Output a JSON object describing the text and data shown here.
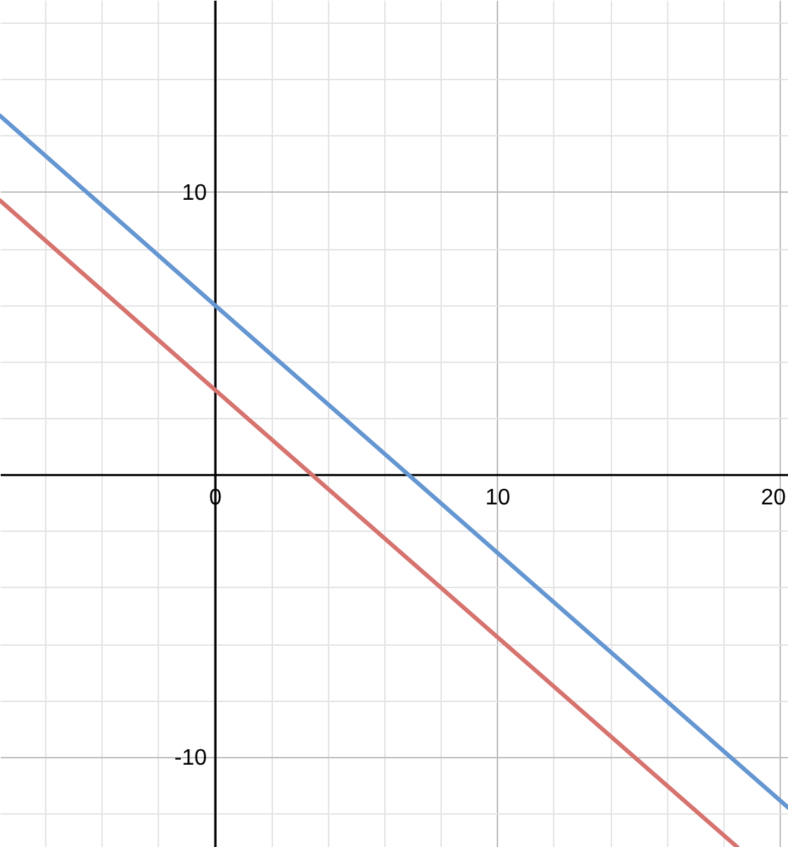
{
  "chart_data": {
    "type": "line",
    "xlim": [
      -7.6,
      20.3
    ],
    "ylim": [
      -13.2,
      16.8
    ],
    "xticks": [
      {
        "value": -6,
        "label": null
      },
      {
        "value": -4,
        "label": null
      },
      {
        "value": -2,
        "label": null
      },
      0,
      {
        "value": 2,
        "label": null
      },
      {
        "value": 4,
        "label": null
      },
      {
        "value": 6,
        "label": null
      },
      {
        "value": 8,
        "label": null
      },
      10,
      {
        "value": 12,
        "label": null
      },
      {
        "value": 14,
        "label": null
      },
      {
        "value": 16,
        "label": null
      },
      {
        "value": 18,
        "label": null
      },
      20
    ],
    "yticks": [
      {
        "value": -12,
        "label": null
      },
      -10,
      {
        "value": -8,
        "label": null
      },
      {
        "value": -6,
        "label": null
      },
      {
        "value": -4,
        "label": null
      },
      {
        "value": -2,
        "label": null
      },
      {
        "value": 0,
        "label": null
      },
      {
        "value": 2,
        "label": null
      },
      {
        "value": 4,
        "label": null
      },
      {
        "value": 6,
        "label": null
      },
      {
        "value": 8,
        "label": null
      },
      10,
      {
        "value": 12,
        "label": null
      },
      {
        "value": 14,
        "label": null
      },
      {
        "value": 16,
        "label": null
      }
    ],
    "grid": true,
    "marker": "none",
    "line_style": "solid",
    "series": [
      {
        "color": "#6496d2",
        "x": [
          -7.6,
          0,
          20.3
        ],
        "values": [
          12.7,
          6,
          -11.8
        ]
      },
      {
        "color": "#d7736e",
        "x": [
          -7.6,
          0,
          18.5
        ],
        "values": [
          9.7,
          3,
          -13.2
        ]
      }
    ]
  }
}
